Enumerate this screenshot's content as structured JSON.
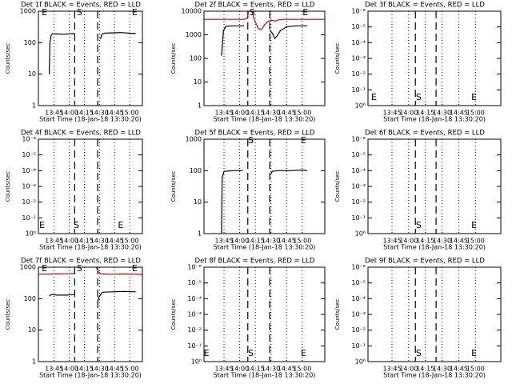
{
  "chart_data": [
    {
      "type": "line",
      "title": "Det 1f BLACK = Events, RED = LLD",
      "ylabel": "Counts/sec",
      "xlabel": "Start Time (18-Jan-18 13:30:20)",
      "xlim": [
        13.49,
        15.21
      ],
      "xticks": [
        {
          "value": 13.75,
          "label": "13:45"
        },
        {
          "value": 14.0,
          "label": "14:00"
        },
        {
          "value": 14.25,
          "label": "14:15"
        },
        {
          "value": 14.5,
          "label": "14:30"
        },
        {
          "value": 14.75,
          "label": "14:45"
        },
        {
          "value": 15.0,
          "label": "15:00"
        }
      ],
      "ylim": [
        1,
        1000
      ],
      "yticks": [
        1,
        10,
        100,
        1000
      ],
      "log_y": true,
      "grid_x": true,
      "dashed_x": [
        14.09,
        14.47
      ],
      "markers": [
        {
          "label": "E",
          "x": 13.59
        },
        {
          "label": "S",
          "x": 14.17
        },
        {
          "label": "E",
          "x": 15.08
        }
      ],
      "marker_row": "top",
      "series": [
        {
          "color": "#000000",
          "x": [
            13.67,
            13.68,
            13.7,
            13.72,
            13.8,
            13.9,
            14.0,
            14.09,
            14.3,
            14.52,
            14.53,
            14.55,
            14.58,
            14.7,
            14.85,
            15.0,
            15.1
          ],
          "values": [
            10,
            100,
            170,
            190,
            190,
            185,
            190,
            195,
            null,
            130,
            170,
            190,
            200,
            205,
            210,
            200,
            195
          ]
        }
      ]
    },
    {
      "type": "line",
      "title": "Det 2f BLACK = Events, RED = LLD",
      "ylabel": "Counts/sec",
      "xlabel": "Start Time (18-Jan-18 13:30:20)",
      "xlim": [
        13.43,
        15.36
      ],
      "xticks": [
        {
          "value": 13.75,
          "label": "13:45"
        },
        {
          "value": 14.0,
          "label": "14:00"
        },
        {
          "value": 14.25,
          "label": "14:15"
        },
        {
          "value": 14.5,
          "label": "14:30"
        },
        {
          "value": 14.75,
          "label": "14:45"
        },
        {
          "value": 15.0,
          "label": "15:00"
        }
      ],
      "ylim": [
        1,
        10000
      ],
      "yticks": [
        1,
        10,
        100,
        1000,
        10000
      ],
      "log_y": true,
      "grid_x": true,
      "dashed_x": [
        14.13,
        14.48
      ],
      "markers": [
        {
          "label": "S",
          "x": 14.2
        },
        {
          "label": "E",
          "x": 15.05
        }
      ],
      "marker_row": "top",
      "series": [
        {
          "color": "#cc0000",
          "x": [
            13.43,
            14.07,
            14.12,
            14.15,
            14.2,
            14.24,
            14.3,
            14.35,
            14.39,
            14.44,
            14.5,
            14.58,
            14.62,
            14.7,
            15.36
          ],
          "values": [
            4500,
            4500,
            5000,
            12000,
            9000,
            4000,
            1800,
            1700,
            2500,
            3500,
            4200,
            3800,
            4300,
            4500,
            4500
          ]
        },
        {
          "color": "#000000",
          "x": [
            13.71,
            13.74,
            13.78,
            13.9,
            14.07,
            14.3,
            14.48,
            14.52,
            14.56,
            14.6,
            14.65,
            14.75,
            14.9,
            15.08
          ],
          "values": [
            130,
            1500,
            2300,
            2400,
            2400,
            null,
            1500,
            1200,
            700,
            900,
            1500,
            2200,
            2400,
            2400
          ]
        }
      ]
    },
    {
      "type": "line",
      "title": "Det 3f BLACK = Events, RED = LLD",
      "ylabel": "Counts/sec",
      "xlabel": "Start Time (18-Jan-18 13:30:20)",
      "xlim": [
        13.39,
        15.38
      ],
      "xticks": [
        {
          "value": 13.75,
          "label": "13:45"
        },
        {
          "value": 14.0,
          "label": "14:00"
        },
        {
          "value": 14.25,
          "label": "14:15"
        },
        {
          "value": 14.5,
          "label": "14:30"
        },
        {
          "value": 14.75,
          "label": "14:45"
        },
        {
          "value": 15.0,
          "label": "15:00"
        }
      ],
      "ylim": [
        1,
        1e-06
      ],
      "yticks": [
        {
          "value": 1,
          "label": "10⁰"
        },
        {
          "value": 0.1,
          "label": "10⁻¹"
        },
        {
          "value": 0.01,
          "label": "10⁻²"
        },
        {
          "value": 0.001,
          "label": "10⁻³"
        },
        {
          "value": 0.0001,
          "label": "10⁻⁴"
        },
        {
          "value": 1e-05,
          "label": "10⁻⁵"
        },
        {
          "value": 1e-06,
          "label": "10⁻⁶"
        }
      ],
      "log_y": true,
      "grid_x": true,
      "dashed_x": [
        14.1,
        14.41
      ],
      "markers": [
        {
          "label": "E",
          "x": 13.48
        },
        {
          "label": "S",
          "x": 14.15
        },
        {
          "label": "E",
          "x": 14.98
        }
      ],
      "marker_row": "bottom",
      "series": []
    },
    {
      "type": "line",
      "title": "Det 4f BLACK = Events, RED = LLD",
      "ylabel": "Counts/sec",
      "xlabel": "Start Time (18-Jan-18 13:30:20)",
      "xlim": [
        13.49,
        15.21
      ],
      "xticks": [
        {
          "value": 13.75,
          "label": "13:45"
        },
        {
          "value": 14.0,
          "label": "14:00"
        },
        {
          "value": 14.25,
          "label": "14:15"
        },
        {
          "value": 14.5,
          "label": "14:30"
        },
        {
          "value": 14.75,
          "label": "14:45"
        },
        {
          "value": 15.0,
          "label": "15:00"
        }
      ],
      "ylim": [
        1,
        1e-06
      ],
      "yticks": [
        {
          "value": 1,
          "label": "10⁰"
        },
        {
          "value": 0.1,
          "label": "10⁻¹"
        },
        {
          "value": 0.01,
          "label": "10⁻²"
        },
        {
          "value": 0.001,
          "label": "10⁻³"
        },
        {
          "value": 0.0001,
          "label": "10⁻⁴"
        },
        {
          "value": 1e-05,
          "label": "10⁻⁵"
        },
        {
          "value": 1e-06,
          "label": "10⁻⁶"
        }
      ],
      "log_y": true,
      "grid_x": true,
      "dashed_x": [
        14.09,
        14.47
      ],
      "markers": [
        {
          "label": "E",
          "x": 13.55
        },
        {
          "label": "S",
          "x": 14.12
        },
        {
          "label": "E",
          "x": 14.85
        }
      ],
      "marker_row": "bottom",
      "series": []
    },
    {
      "type": "line",
      "title": "Det 5f BLACK = Events, RED = LLD",
      "ylabel": "Counts/sec",
      "xlabel": "Start Time (18-Jan-18 13:30:20)",
      "xlim": [
        13.43,
        15.36
      ],
      "xticks": [
        {
          "value": 13.75,
          "label": "13:45"
        },
        {
          "value": 14.0,
          "label": "14:00"
        },
        {
          "value": 14.25,
          "label": "14:15"
        },
        {
          "value": 14.5,
          "label": "14:30"
        },
        {
          "value": 14.75,
          "label": "14:45"
        },
        {
          "value": 15.0,
          "label": "15:00"
        }
      ],
      "ylim": [
        1,
        1000
      ],
      "yticks": [
        1,
        10,
        100,
        1000
      ],
      "log_y": true,
      "grid_x": true,
      "dashed_x": [
        14.13,
        14.48
      ],
      "markers": [
        {
          "label": "S",
          "x": 14.18
        },
        {
          "label": "E",
          "x": 15.02
        }
      ],
      "marker_row": "top",
      "series": [
        {
          "color": "#000000",
          "x": [
            13.71,
            13.72,
            13.75,
            13.9,
            14.05,
            14.3,
            14.5,
            14.52,
            14.6,
            14.8,
            15.0,
            15.08
          ],
          "values": [
            1,
            60,
            95,
            100,
            100,
            null,
            80,
            95,
            100,
            100,
            105,
            100
          ]
        }
      ]
    },
    {
      "type": "line",
      "title": "Det 6f BLACK = Events, RED = LLD",
      "ylabel": "Counts/sec",
      "xlabel": "Start Time (18-Jan-18 13:30:20)",
      "xlim": [
        13.39,
        15.38
      ],
      "xticks": [
        {
          "value": 13.75,
          "label": "13:45"
        },
        {
          "value": 14.0,
          "label": "14:00"
        },
        {
          "value": 14.25,
          "label": "14:15"
        },
        {
          "value": 14.5,
          "label": "14:30"
        },
        {
          "value": 14.75,
          "label": "14:45"
        },
        {
          "value": 15.0,
          "label": "15:00"
        }
      ],
      "ylim": [
        1,
        1e-06
      ],
      "yticks": [
        {
          "value": 1,
          "label": "10⁰"
        },
        {
          "value": 0.1,
          "label": "10⁻¹"
        },
        {
          "value": 0.01,
          "label": "10⁻²"
        },
        {
          "value": 0.001,
          "label": "10⁻³"
        },
        {
          "value": 0.0001,
          "label": "10⁻⁴"
        },
        {
          "value": 1e-05,
          "label": "10⁻⁵"
        },
        {
          "value": 1e-06,
          "label": "10⁻⁶"
        }
      ],
      "log_y": true,
      "grid_x": true,
      "dashed_x": [
        14.1,
        14.41
      ],
      "markers": [
        {
          "label": "S",
          "x": 14.15
        },
        {
          "label": "E",
          "x": 14.98
        }
      ],
      "marker_row": "bottom",
      "series": []
    },
    {
      "type": "line",
      "title": "Det 7f BLACK = Events, RED = LLD",
      "ylabel": "Counts/sec",
      "xlabel": "Start Time (18-Jan-18 13:30:20)",
      "xlim": [
        13.49,
        15.21
      ],
      "xticks": [
        {
          "value": 13.75,
          "label": "13:45"
        },
        {
          "value": 14.0,
          "label": "14:00"
        },
        {
          "value": 14.25,
          "label": "14:15"
        },
        {
          "value": 14.5,
          "label": "14:30"
        },
        {
          "value": 14.75,
          "label": "14:45"
        },
        {
          "value": 15.0,
          "label": "15:00"
        }
      ],
      "ylim": [
        1,
        1000
      ],
      "yticks": [
        1,
        10,
        100,
        1000
      ],
      "log_y": true,
      "grid_x": true,
      "dashed_x": [
        14.09,
        14.47
      ],
      "markers": [
        {
          "label": "E",
          "x": 13.59
        },
        {
          "label": "S",
          "x": 14.17
        },
        {
          "label": "E",
          "x": 15.08
        }
      ],
      "marker_row": "top",
      "series": [
        {
          "color": "#cc0000",
          "x": [
            13.49,
            13.8,
            14.0,
            14.09,
            14.3,
            14.45,
            14.47,
            14.52,
            14.7,
            14.9,
            15.21
          ],
          "values": [
            600,
            610,
            620,
            640,
            null,
            1000,
            750,
            620,
            600,
            610,
            590
          ]
        },
        {
          "color": "#000000",
          "x": [
            13.67,
            13.7,
            13.8,
            13.95,
            14.09,
            14.3,
            14.47,
            14.5,
            14.55,
            14.7,
            14.9,
            15.1
          ],
          "values": [
            120,
            135,
            130,
            130,
            135,
            null,
            80,
            120,
            160,
            165,
            170,
            165
          ]
        }
      ]
    },
    {
      "type": "line",
      "title": "Det 8f BLACK = Events, RED = LLD",
      "ylabel": "Counts/sec",
      "xlabel": "Start Time (18-Jan-18 13:30:20)",
      "xlim": [
        13.43,
        15.36
      ],
      "xticks": [
        {
          "value": 13.75,
          "label": "13:45"
        },
        {
          "value": 14.0,
          "label": "14:00"
        },
        {
          "value": 14.25,
          "label": "14:15"
        },
        {
          "value": 14.5,
          "label": "14:30"
        },
        {
          "value": 14.75,
          "label": "14:45"
        },
        {
          "value": 15.0,
          "label": "15:00"
        }
      ],
      "ylim": [
        1,
        1e-06
      ],
      "yticks": [
        {
          "value": 1,
          "label": "10⁰"
        },
        {
          "value": 0.1,
          "label": "10⁻¹"
        },
        {
          "value": 0.01,
          "label": "10⁻²"
        },
        {
          "value": 0.001,
          "label": "10⁻³"
        },
        {
          "value": 0.0001,
          "label": "10⁻⁴"
        },
        {
          "value": 1e-05,
          "label": "10⁻⁵"
        },
        {
          "value": 1e-06,
          "label": "10⁻⁶"
        }
      ],
      "log_y": true,
      "grid_x": true,
      "dashed_x": [
        14.13,
        14.48
      ],
      "markers": [
        {
          "label": "E",
          "x": 13.47
        },
        {
          "label": "S",
          "x": 14.18
        },
        {
          "label": "E",
          "x": 15.02
        }
      ],
      "marker_row": "bottom",
      "series": []
    },
    {
      "type": "line",
      "title": "Det 9f BLACK = Events, RED = LLD",
      "ylabel": "Counts/sec",
      "xlabel": "Start Time (18-Jan-18 13:30:20)",
      "xlim": [
        13.39,
        15.38
      ],
      "xticks": [
        {
          "value": 13.75,
          "label": "13:45"
        },
        {
          "value": 14.0,
          "label": "14:00"
        },
        {
          "value": 14.25,
          "label": "14:15"
        },
        {
          "value": 14.5,
          "label": "14:30"
        },
        {
          "value": 14.75,
          "label": "14:45"
        },
        {
          "value": 15.0,
          "label": "15:00"
        }
      ],
      "ylim": [
        1,
        1e-06
      ],
      "yticks": [
        {
          "value": 1,
          "label": "10⁰"
        },
        {
          "value": 0.1,
          "label": "10⁻¹"
        },
        {
          "value": 0.01,
          "label": "10⁻²"
        },
        {
          "value": 0.001,
          "label": "10⁻³"
        },
        {
          "value": 0.0001,
          "label": "10⁻⁴"
        },
        {
          "value": 1e-05,
          "label": "10⁻⁵"
        },
        {
          "value": 1e-06,
          "label": "10⁻⁶"
        }
      ],
      "log_y": true,
      "grid_x": true,
      "dashed_x": [
        14.1,
        14.41
      ],
      "markers": [
        {
          "label": "S",
          "x": 14.15
        },
        {
          "label": "E",
          "x": 14.98
        }
      ],
      "marker_row": "bottom",
      "series": []
    }
  ]
}
